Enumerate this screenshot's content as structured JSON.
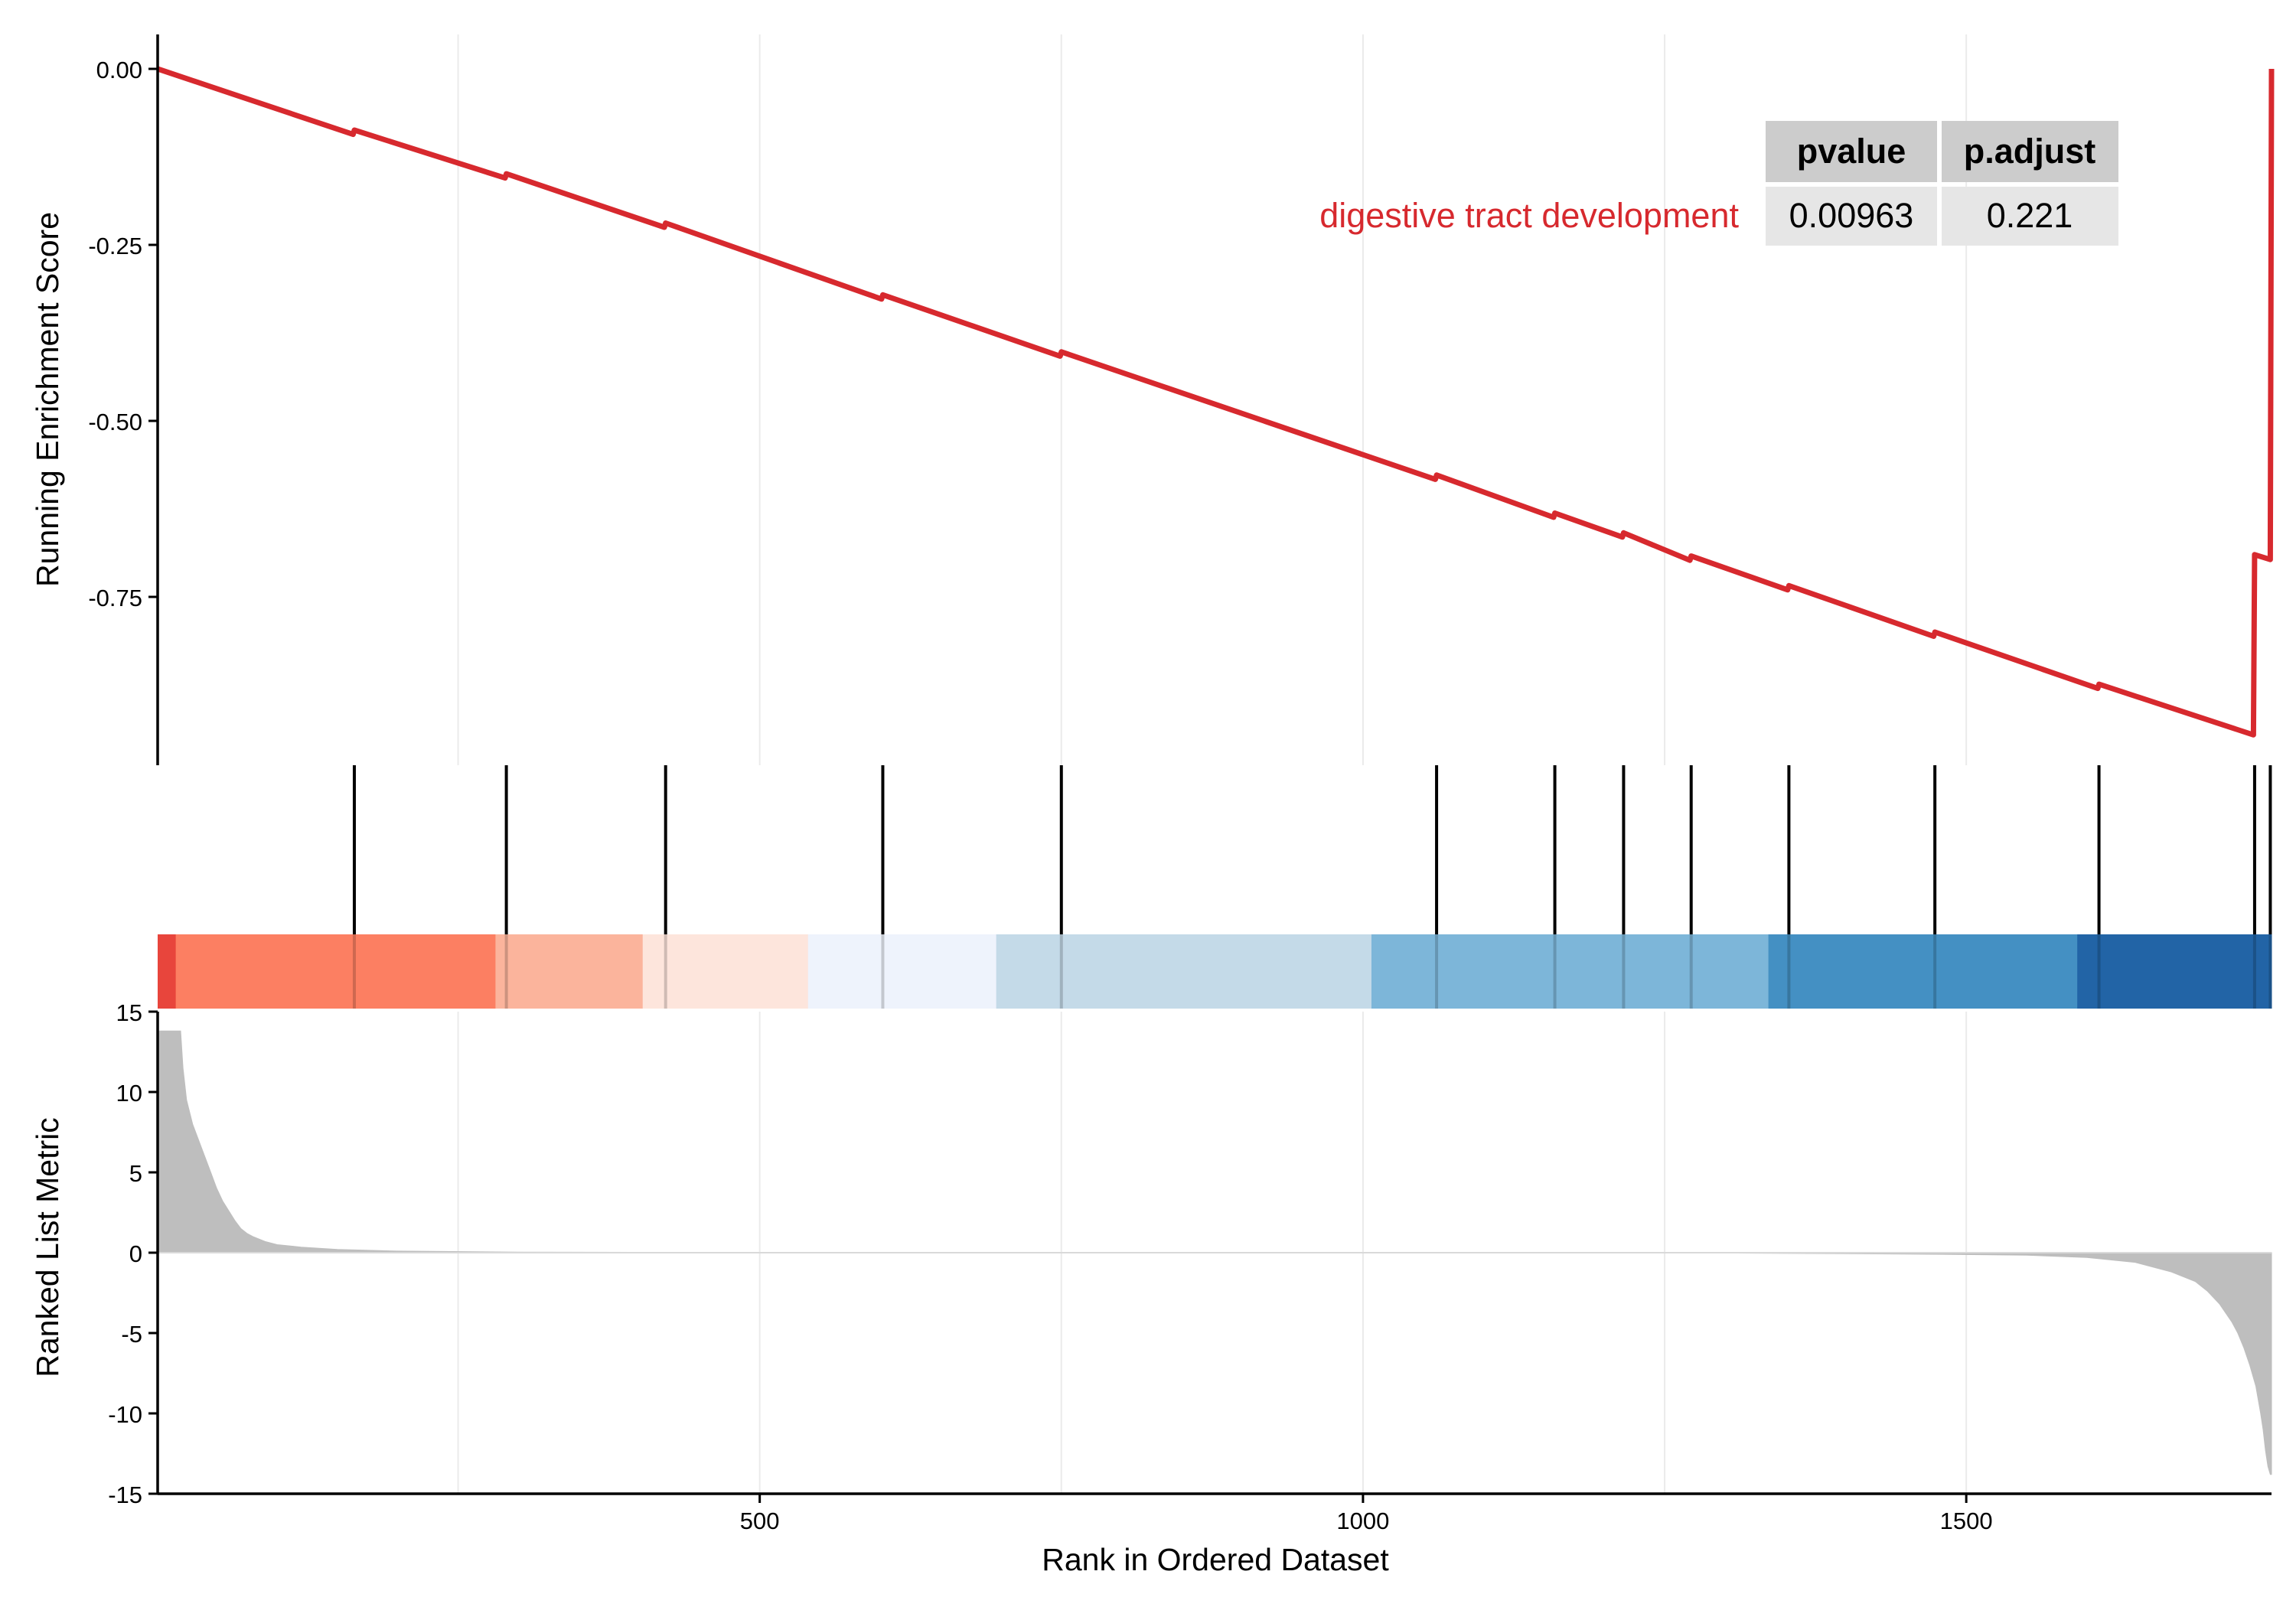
{
  "chart_data": {
    "type": "line",
    "x_range": [
      1,
      1753
    ],
    "colors": {
      "es_line": "#D7292E",
      "hit_line": "#000000",
      "metric_fill": "#BEBEBE",
      "grid": "#EBEBEB",
      "table_header_bg": "#CCCCCC",
      "table_cell_bg": "#E6E6E6",
      "term_label": "#D7292E"
    },
    "top_panel": {
      "ylabel": "Running Enrichment Score",
      "yticks": [
        0.0,
        -0.25,
        -0.5,
        -0.75
      ],
      "ytick_labels": [
        "0.00",
        "-0.25",
        "-0.50",
        "-0.75"
      ],
      "ylim": [
        -1.0,
        0.05
      ],
      "series_name": "digestive tract development",
      "points": [
        [
          1,
          0.0
        ],
        [
          163,
          -0.093
        ],
        [
          164,
          -0.087
        ],
        [
          289,
          -0.155
        ],
        [
          290,
          -0.149
        ],
        [
          421,
          -0.225
        ],
        [
          422,
          -0.219
        ],
        [
          601,
          -0.327
        ],
        [
          602,
          -0.321
        ],
        [
          749,
          -0.408
        ],
        [
          750,
          -0.402
        ],
        [
          1060,
          -0.583
        ],
        [
          1061,
          -0.577
        ],
        [
          1158,
          -0.637
        ],
        [
          1159,
          -0.631
        ],
        [
          1215,
          -0.665
        ],
        [
          1216,
          -0.659
        ],
        [
          1271,
          -0.698
        ],
        [
          1272,
          -0.692
        ],
        [
          1352,
          -0.74
        ],
        [
          1353,
          -0.734
        ],
        [
          1473,
          -0.806
        ],
        [
          1474,
          -0.8
        ],
        [
          1609,
          -0.88
        ],
        [
          1610,
          -0.874
        ],
        [
          1738,
          -0.946
        ],
        [
          1739,
          -0.69
        ],
        [
          1752,
          -0.697
        ],
        [
          1753,
          0.0
        ]
      ],
      "table": {
        "headers": [
          "pvalue",
          "p.adjust"
        ],
        "row_label": "digestive tract development",
        "values": [
          "0.00963",
          "0.221"
        ]
      }
    },
    "hits": [
      164,
      290,
      422,
      602,
      750,
      1061,
      1159,
      1216,
      1272,
      1353,
      1474,
      1610,
      1739,
      1752
    ],
    "color_bar": {
      "segments": [
        {
          "start": 1,
          "end": 16,
          "color": "#E8453C"
        },
        {
          "start": 16,
          "end": 281,
          "color": "#FC7F62"
        },
        {
          "start": 281,
          "end": 403,
          "color": "#FBB49C"
        },
        {
          "start": 403,
          "end": 540,
          "color": "#FDE5DC"
        },
        {
          "start": 540,
          "end": 696,
          "color": "#EEF3FC"
        },
        {
          "start": 696,
          "end": 1007,
          "color": "#C4DAE8"
        },
        {
          "start": 1007,
          "end": 1336,
          "color": "#7DB6D9"
        },
        {
          "start": 1336,
          "end": 1592,
          "color": "#4490C3"
        },
        {
          "start": 1592,
          "end": 1753,
          "color": "#2264A6"
        }
      ]
    },
    "bottom_panel": {
      "ylabel": "Ranked List Metric",
      "xlabel": "Rank in Ordered Dataset",
      "yticks": [
        15,
        10,
        5,
        0,
        -5,
        -10,
        -15
      ],
      "ytick_labels": [
        "15",
        "10",
        "5",
        "0",
        "-5",
        "-10",
        "-15"
      ],
      "ylim": [
        -15,
        15
      ],
      "xticks": [
        500,
        1000,
        1500
      ],
      "xtick_labels": [
        "500",
        "1000",
        "1500"
      ],
      "metric_profile": [
        [
          1,
          13.8
        ],
        [
          20,
          13.8
        ],
        [
          22,
          11.5
        ],
        [
          25,
          9.5
        ],
        [
          30,
          8.0
        ],
        [
          35,
          7.0
        ],
        [
          40,
          6.0
        ],
        [
          45,
          5.0
        ],
        [
          50,
          4.0
        ],
        [
          55,
          3.2
        ],
        [
          60,
          2.6
        ],
        [
          65,
          2.0
        ],
        [
          70,
          1.5
        ],
        [
          75,
          1.2
        ],
        [
          80,
          1.0
        ],
        [
          90,
          0.7
        ],
        [
          100,
          0.5
        ],
        [
          120,
          0.35
        ],
        [
          150,
          0.2
        ],
        [
          200,
          0.1
        ],
        [
          300,
          0.04
        ],
        [
          500,
          0.01
        ],
        [
          900,
          0.0
        ],
        [
          1300,
          -0.02
        ],
        [
          1450,
          -0.08
        ],
        [
          1550,
          -0.15
        ],
        [
          1600,
          -0.3
        ],
        [
          1640,
          -0.6
        ],
        [
          1670,
          -1.2
        ],
        [
          1690,
          -1.8
        ],
        [
          1700,
          -2.4
        ],
        [
          1710,
          -3.2
        ],
        [
          1720,
          -4.3
        ],
        [
          1725,
          -5.0
        ],
        [
          1730,
          -5.9
        ],
        [
          1735,
          -7.0
        ],
        [
          1740,
          -8.3
        ],
        [
          1744,
          -10.0
        ],
        [
          1746,
          -11.0
        ],
        [
          1748,
          -12.3
        ],
        [
          1750,
          -13.3
        ],
        [
          1752,
          -13.8
        ],
        [
          1753,
          -13.8
        ]
      ]
    }
  }
}
